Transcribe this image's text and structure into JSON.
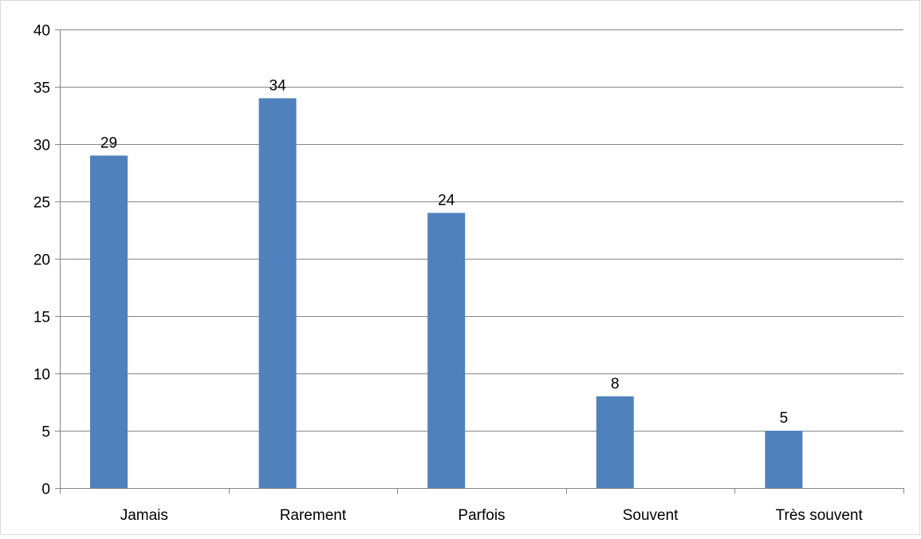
{
  "chart_data": {
    "type": "bar",
    "title": "",
    "xlabel": "",
    "ylabel": "",
    "categories": [
      "Jamais",
      "Rarement",
      "Parfois",
      "Souvent",
      "Très souvent"
    ],
    "values": [
      29,
      34,
      24,
      8,
      5
    ],
    "ylim": [
      0,
      40
    ],
    "yticks": [
      0,
      5,
      10,
      15,
      20,
      25,
      30,
      35,
      40
    ],
    "grid": true,
    "legend": "none",
    "data_labels": true,
    "bar_color": "#4F81BD",
    "gridline_color": "#868686"
  }
}
